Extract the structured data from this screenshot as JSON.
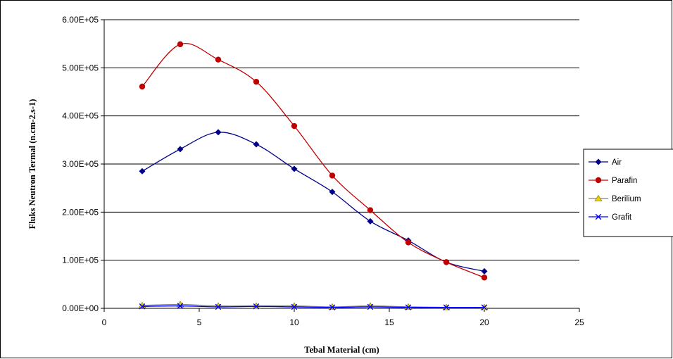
{
  "chart_data": {
    "type": "line",
    "title": "",
    "xlabel": "Tebal Material (cm)",
    "ylabel": "Fluks Neutron Termal (n.cm-2.s-1)",
    "xlim": [
      0,
      25
    ],
    "ylim": [
      0,
      600000
    ],
    "x_ticks": [
      0,
      5,
      10,
      15,
      20,
      25
    ],
    "x_tick_labels": [
      "0",
      "5",
      "10",
      "15",
      "20",
      "25"
    ],
    "y_ticks": [
      0,
      100000,
      200000,
      300000,
      400000,
      500000,
      600000
    ],
    "y_tick_labels": [
      "0.00E+00",
      "1.00E+05",
      "2.00E+05",
      "3.00E+05",
      "4.00E+05",
      "5.00E+05",
      "6.00E+05"
    ],
    "grid": "horizontal major gridlines",
    "legend_position": "right",
    "x": [
      2,
      4,
      6,
      8,
      10,
      12,
      14,
      16,
      18,
      20
    ],
    "series": [
      {
        "name": "Air",
        "color": "#00008B",
        "marker": "diamond",
        "values": [
          285000,
          331000,
          366000,
          341000,
          290000,
          242000,
          181000,
          141000,
          96000,
          77000
        ]
      },
      {
        "name": "Parafin",
        "color": "#C00000",
        "marker": "circle",
        "values": [
          461000,
          549000,
          517000,
          471000,
          379000,
          276000,
          204000,
          137000,
          96000,
          64000
        ]
      },
      {
        "name": "Berilium",
        "color": "#E8D000",
        "marker": "triangle",
        "values": [
          6000,
          8000,
          5000,
          5000,
          5000,
          3000,
          5000,
          3000,
          2000,
          2000
        ]
      },
      {
        "name": "Grafit",
        "color": "#0000FF",
        "marker": "x",
        "values": [
          4000,
          5000,
          3000,
          4000,
          3000,
          2000,
          3000,
          2000,
          2000,
          2000
        ]
      }
    ]
  }
}
